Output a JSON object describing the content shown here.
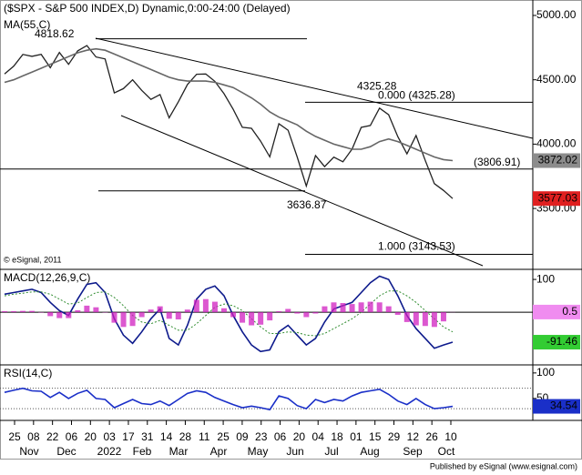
{
  "chart_data": [
    {
      "type": "price",
      "title": "($SPX - S&P 500 INDEX,D) Dynamic,0:00-24:00 (Delayed)",
      "credit": "© eSignal, 2011",
      "ylim": [
        3034,
        5120
      ],
      "yticks": [
        {
          "value": 5000,
          "label": "5000.00"
        },
        {
          "value": 4500,
          "label": "4500.00"
        },
        {
          "value": 4000,
          "label": "4000.00"
        },
        {
          "value": 3500,
          "label": "3500.00"
        }
      ],
      "series": [
        {
          "color": "#222222",
          "values": [
            4545,
            4605,
            4697,
            4682,
            4698,
            4594,
            4712,
            4620,
            4725,
            4766,
            4677,
            4662,
            4398,
            4431,
            4500,
            4418,
            4348,
            4385,
            4204,
            4329,
            4463,
            4543,
            4545,
            4488,
            4392,
            4271,
            4131,
            4123,
            4023,
            3901,
            4158,
            4108,
            3900,
            3675,
            3911,
            3825,
            3899,
            3863,
            3962,
            4130,
            4145,
            4280,
            4228,
            4058,
            3924,
            4067,
            3873,
            3693,
            3640,
            3577.03
          ],
          "badge_color": "#e02020"
        },
        {
          "name": "MA(55,C)",
          "color": "#666666",
          "values": [
            4480,
            4500,
            4530,
            4560,
            4590,
            4620,
            4650,
            4680,
            4710,
            4730,
            4740,
            4730,
            4700,
            4670,
            4640,
            4610,
            4580,
            4550,
            4520,
            4500,
            4490,
            4490,
            4490,
            4480,
            4460,
            4440,
            4400,
            4360,
            4310,
            4250,
            4210,
            4180,
            4150,
            4100,
            4060,
            4030,
            4000,
            3980,
            3960,
            3960,
            3980,
            4020,
            4040,
            4020,
            3990,
            3960,
            3930,
            3900,
            3880,
            3872.02
          ],
          "badge_color": "#8c8c8c"
        }
      ],
      "levels": [
        4818.62,
        4325.28,
        {
          "value": 4325.28,
          "label": "0.000 (4325.28)"
        },
        {
          "value": 3806.91,
          "label": "(3806.91)"
        },
        {
          "value": 3143.53,
          "label": "1.000 (3143.53)"
        },
        3636.87
      ]
    },
    {
      "type": "macd",
      "title": "MACD(12,26,9,C)",
      "ylim": [
        -158,
        128
      ],
      "yticks": [
        100
      ],
      "levels": [
        0
      ],
      "series": [
        {
          "color": "#0d1a8c",
          "values": [
            55,
            60,
            65,
            70,
            60,
            30,
            5,
            -10,
            40,
            85,
            90,
            60,
            -20,
            -70,
            -95,
            -60,
            -20,
            10,
            -80,
            -100,
            -40,
            40,
            70,
            80,
            50,
            -10,
            -60,
            -100,
            -120,
            -115,
            -60,
            -40,
            -70,
            -100,
            -80,
            -30,
            10,
            20,
            30,
            60,
            90,
            110,
            100,
            50,
            -10,
            -50,
            -80,
            -110,
            -100,
            -91.46
          ],
          "badge_color": "#33cc33"
        },
        {
          "color": "#2e8b2e",
          "values": [
            50,
            55,
            58,
            62,
            62,
            55,
            40,
            25,
            28,
            45,
            60,
            62,
            45,
            20,
            -10,
            -30,
            -35,
            -25,
            -40,
            -55,
            -55,
            -35,
            -10,
            15,
            25,
            20,
            5,
            -20,
            -45,
            -65,
            -65,
            -60,
            -62,
            -70,
            -72,
            -65,
            -50,
            -35,
            -20,
            0,
            25,
            50,
            65,
            65,
            50,
            30,
            5,
            -20,
            -45,
            -60
          ],
          "style": "dotted"
        },
        {
          "color": "#d020c0",
          "values": [
            3,
            3,
            4,
            4,
            -1,
            -12,
            -18,
            -18,
            6,
            20,
            15,
            -1,
            -32,
            -45,
            -42,
            -15,
            8,
            18,
            -20,
            -22,
            8,
            38,
            40,
            32,
            12,
            -15,
            -32,
            -40,
            -38,
            -25,
            3,
            10,
            -4,
            -15,
            -4,
            18,
            30,
            28,
            25,
            30,
            32,
            30,
            18,
            -8,
            -30,
            -40,
            -42,
            -45,
            -28,
            0.5
          ],
          "style": "histogram",
          "badge_color": "#f08cf0"
        }
      ]
    },
    {
      "type": "rsi",
      "title": "RSI(14,C)",
      "ylim": [
        7,
        114
      ],
      "yticks": [
        100,
        50
      ],
      "levels": [
        70,
        30
      ],
      "series": [
        {
          "color": "#1a2fc8",
          "values": [
            62,
            66,
            70,
            65,
            64,
            52,
            62,
            50,
            60,
            66,
            50,
            48,
            32,
            40,
            48,
            40,
            38,
            45,
            36,
            48,
            60,
            65,
            62,
            52,
            45,
            38,
            32,
            35,
            32,
            28,
            55,
            50,
            36,
            30,
            48,
            42,
            48,
            45,
            55,
            62,
            65,
            68,
            58,
            45,
            38,
            50,
            38,
            30,
            32,
            34.54
          ],
          "badge_color": "#1a2fc8"
        }
      ]
    }
  ],
  "x_axis": {
    "ticks": [
      "25",
      "08",
      "22",
      "06",
      "20",
      "03",
      "17",
      "31",
      "14",
      "28",
      "11",
      "25",
      "09",
      "23",
      "06",
      "20",
      "04",
      "18",
      "01",
      "15",
      "29",
      "12",
      "26",
      "10"
    ],
    "months": [
      "Nov",
      "Dec",
      "2022",
      "Feb",
      "Mar",
      "Apr",
      "May",
      "Jun",
      "Jul",
      "Aug",
      "Sep",
      "Oct"
    ]
  },
  "footer": "Published by eSignal (www.esignal.com)"
}
